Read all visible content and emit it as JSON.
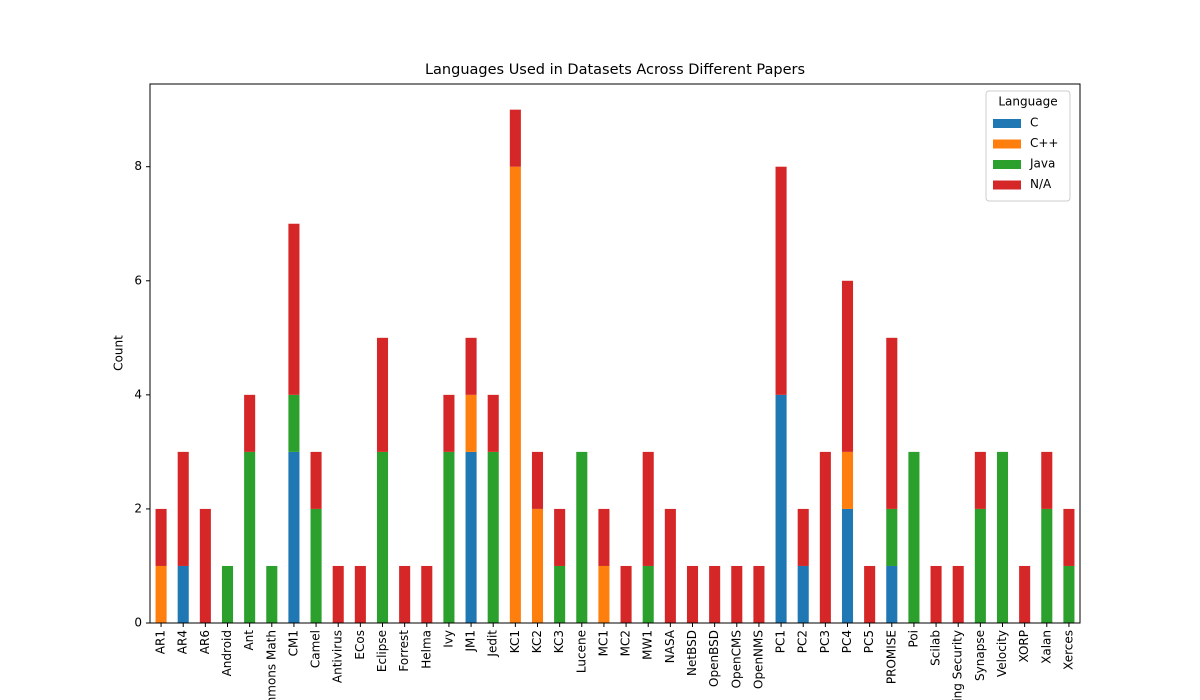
{
  "chart_data": {
    "type": "stacked_bar",
    "title": "Languages Used in Datasets Across Different Papers",
    "y_label": "Count",
    "categories": [
      "AR1",
      "AR4",
      "AR6",
      "Android",
      "Ant",
      "Commons Math",
      "CM1",
      "Camel",
      "Antivirus",
      "ECos",
      "Eclipse",
      "Forrest",
      "Helma",
      "Ivy",
      "JM1",
      "Jedit",
      "KC1",
      "KC2",
      "KC3",
      "Lucene",
      "MC1",
      "MC2",
      "MW1",
      "NASA",
      "NetBSD",
      "OpenBSD",
      "OpenCMS",
      "OpenNMS",
      "PC1",
      "PC2",
      "PC3",
      "PC4",
      "PC5",
      "PROMISE",
      "Poi",
      "Scilab",
      "Spring Security",
      "Synapse",
      "Velocity",
      "XORP",
      "Xalan",
      "Xerces"
    ],
    "series": [
      {
        "name": "C",
        "color": "#1f77b4",
        "values": [
          0,
          1,
          0,
          0,
          0,
          0,
          3,
          0,
          0,
          0,
          0,
          0,
          0,
          0,
          3,
          0,
          0,
          0,
          0,
          0,
          0,
          0,
          0,
          0,
          0,
          0,
          0,
          0,
          4,
          1,
          0,
          2,
          0,
          1,
          0,
          0,
          0,
          0,
          0,
          0,
          0,
          0
        ]
      },
      {
        "name": "C++",
        "color": "#ff7f0e",
        "values": [
          1,
          0,
          0,
          0,
          0,
          0,
          0,
          0,
          0,
          0,
          0,
          0,
          0,
          0,
          1,
          0,
          8,
          2,
          0,
          0,
          1,
          0,
          0,
          0,
          0,
          0,
          0,
          0,
          0,
          0,
          0,
          1,
          0,
          0,
          0,
          0,
          0,
          0,
          0,
          0,
          0,
          0
        ]
      },
      {
        "name": "Java",
        "color": "#2ca02c",
        "values": [
          0,
          0,
          0,
          1,
          3,
          1,
          1,
          2,
          0,
          0,
          3,
          0,
          0,
          3,
          0,
          3,
          0,
          0,
          1,
          3,
          0,
          0,
          1,
          0,
          0,
          0,
          0,
          0,
          0,
          0,
          0,
          0,
          0,
          1,
          3,
          0,
          0,
          2,
          3,
          0,
          2,
          1
        ]
      },
      {
        "name": "N/A",
        "color": "#d62728",
        "values": [
          1,
          2,
          2,
          0,
          1,
          0,
          3,
          1,
          1,
          1,
          2,
          1,
          1,
          1,
          1,
          1,
          1,
          1,
          1,
          0,
          1,
          1,
          2,
          2,
          1,
          1,
          1,
          1,
          4,
          1,
          3,
          3,
          1,
          3,
          0,
          1,
          1,
          1,
          0,
          1,
          1,
          1
        ]
      }
    ],
    "ylim": [
      0,
      9.45
    ],
    "yticks": [
      0,
      2,
      4,
      6,
      8
    ],
    "legend_title": "Language",
    "legend": "upper right"
  }
}
